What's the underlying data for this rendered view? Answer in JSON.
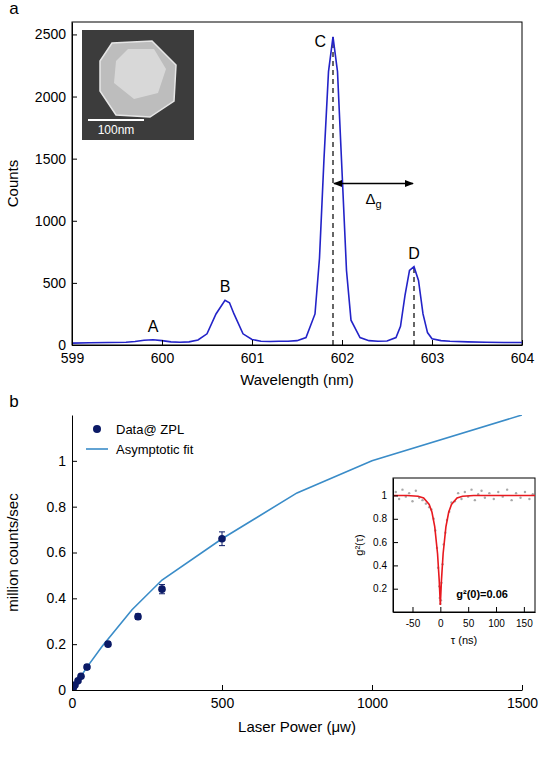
{
  "chart_data": [
    {
      "panel": "a",
      "type": "line",
      "xlabel": "Wavelength (nm)",
      "ylabel": "Counts",
      "xlim": [
        599,
        604
      ],
      "xticks": [
        599,
        600,
        601,
        602,
        603,
        604
      ],
      "ylim": [
        0,
        2600
      ],
      "yticks": [
        0,
        500,
        1000,
        1500,
        2000,
        2500
      ],
      "color": "#2323c8",
      "x": [
        599,
        599.2,
        599.4,
        599.6,
        599.7,
        599.8,
        599.9,
        600,
        600.1,
        600.2,
        600.3,
        600.4,
        600.5,
        600.6,
        600.7,
        600.75,
        600.8,
        600.9,
        601,
        601.1,
        601.2,
        601.3,
        601.4,
        601.5,
        601.6,
        601.7,
        601.75,
        601.8,
        601.85,
        601.9,
        601.95,
        602,
        602.05,
        602.1,
        602.2,
        602.3,
        602.4,
        602.5,
        602.6,
        602.65,
        602.7,
        602.75,
        602.8,
        602.85,
        602.9,
        602.95,
        603,
        603.1,
        603.2,
        603.4,
        603.6,
        603.8,
        604
      ],
      "values": [
        15,
        18,
        20,
        22,
        28,
        38,
        42,
        35,
        25,
        22,
        25,
        40,
        90,
        250,
        360,
        340,
        250,
        90,
        45,
        30,
        28,
        30,
        30,
        35,
        60,
        250,
        700,
        1500,
        2200,
        2480,
        2200,
        1400,
        600,
        200,
        60,
        35,
        30,
        32,
        60,
        150,
        400,
        600,
        630,
        520,
        250,
        100,
        50,
        35,
        30,
        25,
        22,
        20,
        20
      ],
      "annotations": [
        {
          "text": "A",
          "x": 599.9,
          "y": 42
        },
        {
          "text": "B",
          "x": 600.7,
          "y": 360
        },
        {
          "text": "C",
          "x": 601.9,
          "y": 2480
        },
        {
          "text": "D",
          "x": 602.8,
          "y": 630
        }
      ],
      "vlines": [
        {
          "x": 601.9,
          "y": 2480
        },
        {
          "x": 602.8,
          "y": 630
        }
      ],
      "span_annotation": {
        "text": "Δg",
        "x": [
          601.9,
          602.8
        ],
        "y": 1300
      },
      "inset_image": {
        "scale_bar_label": "100nm"
      }
    },
    {
      "panel": "b",
      "type": "scatter",
      "xlabel": "Laser Power (μw)",
      "ylabel": "million counts/sec",
      "xlim": [
        0,
        1500
      ],
      "xticks": [
        0,
        500,
        1000,
        1500
      ],
      "ylim": [
        0,
        1.2
      ],
      "yticks": [
        0,
        0.2,
        0.4,
        0.6,
        0.8,
        1
      ],
      "legend": "top-left",
      "series": [
        {
          "name": "Data@ ZPL",
          "type": "scatter",
          "marker": "circle",
          "color": "#0b1a66",
          "x": [
            2,
            5,
            10,
            20,
            30,
            50,
            120,
            220,
            300,
            500
          ],
          "values": [
            0.005,
            0.012,
            0.022,
            0.04,
            0.06,
            0.1,
            0.2,
            0.32,
            0.44,
            0.66
          ],
          "errors": [
            0.004,
            0.005,
            0.005,
            0.005,
            0.008,
            0.01,
            0.01,
            0.012,
            0.02,
            0.03
          ]
        },
        {
          "name": "Asymptotic fit",
          "type": "line",
          "color": "#3a8cc8",
          "x": [
            0,
            10,
            20,
            50,
            100,
            200,
            300,
            500,
            750,
            1000,
            1500
          ],
          "values": [
            0,
            0.02,
            0.04,
            0.1,
            0.19,
            0.35,
            0.48,
            0.66,
            0.86,
            1.0,
            1.2
          ]
        }
      ]
    },
    {
      "type": "scatter",
      "xlabel": "τ (ns)",
      "ylabel": "g²(τ)",
      "xlim": [
        -85,
        170
      ],
      "xticks": [
        -50,
        0,
        50,
        100,
        150
      ],
      "ylim": [
        0,
        1.15
      ],
      "yticks": [
        0.2,
        0.4,
        0.6,
        0.8,
        1
      ],
      "annotations": [
        {
          "text": "g²(0)=0.06",
          "x": 75,
          "y": 0.12
        }
      ],
      "series": [
        {
          "type": "scatter",
          "marker": "dot",
          "color": "#a8a8a8",
          "x": [
            -80,
            -74,
            -68,
            -62,
            -56,
            -50,
            -44,
            -38,
            -32,
            -26,
            -20,
            -16,
            -12,
            -9,
            -6,
            -4,
            -2,
            -1,
            0,
            1,
            2,
            4,
            6,
            9,
            12,
            16,
            20,
            26,
            32,
            38,
            44,
            50,
            56,
            62,
            68,
            74,
            80,
            88,
            96,
            104,
            112,
            120,
            128,
            136,
            144,
            152,
            160,
            166
          ],
          "values": [
            1.03,
            0.97,
            1.05,
            0.99,
            1.02,
            0.95,
            1.04,
            0.98,
            0.96,
            0.93,
            0.9,
            0.88,
            0.8,
            0.7,
            0.55,
            0.38,
            0.22,
            0.12,
            0.07,
            0.1,
            0.25,
            0.41,
            0.58,
            0.68,
            0.79,
            0.86,
            0.94,
            0.95,
            1.02,
            0.97,
            1.03,
            0.99,
            1.05,
            0.96,
            1.01,
            1.04,
            0.98,
            1.02,
            0.97,
            1.03,
            0.99,
            1.05,
            0.96,
            1.02,
            0.98,
            1.03,
            0.97,
            1.01
          ]
        },
        {
          "type": "line",
          "color": "#e8191f",
          "x": [
            -85,
            -60,
            -40,
            -30,
            -20,
            -15,
            -10,
            -5,
            -2,
            0,
            2,
            5,
            10,
            15,
            20,
            30,
            40,
            60,
            100,
            170
          ],
          "values": [
            1,
            1,
            0.994,
            0.978,
            0.923,
            0.856,
            0.73,
            0.5,
            0.27,
            0.06,
            0.27,
            0.5,
            0.73,
            0.856,
            0.923,
            0.978,
            0.994,
            1,
            1,
            1
          ]
        }
      ]
    }
  ]
}
